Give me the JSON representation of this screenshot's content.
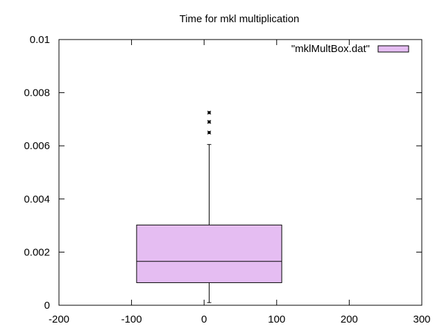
{
  "chart_data": {
    "type": "box",
    "title": "Time for mkl multiplication",
    "xlabel": "",
    "ylabel": "",
    "xlim": [
      -200,
      300
    ],
    "ylim": [
      0,
      0.01
    ],
    "x_ticks": [
      -200,
      -100,
      0,
      100,
      200,
      300
    ],
    "y_ticks": [
      0,
      0.002,
      0.004,
      0.006,
      0.008,
      0.01
    ],
    "y_tick_labels": [
      "0",
      "0.002",
      "0.004",
      "0.006",
      "0.008",
      "0.01"
    ],
    "legend_position": "top-right",
    "series": [
      {
        "name": "\"mklMultBox.dat\"",
        "x": 7,
        "box_x_range": [
          -93,
          107
        ],
        "whisker_low": 0.0001,
        "q1": 0.00085,
        "median": 0.00165,
        "q3": 0.00302,
        "whisker_high": 0.00605,
        "outliers": [
          0.0065,
          0.0069,
          0.00725
        ],
        "color": "#e5bdf2"
      }
    ]
  }
}
